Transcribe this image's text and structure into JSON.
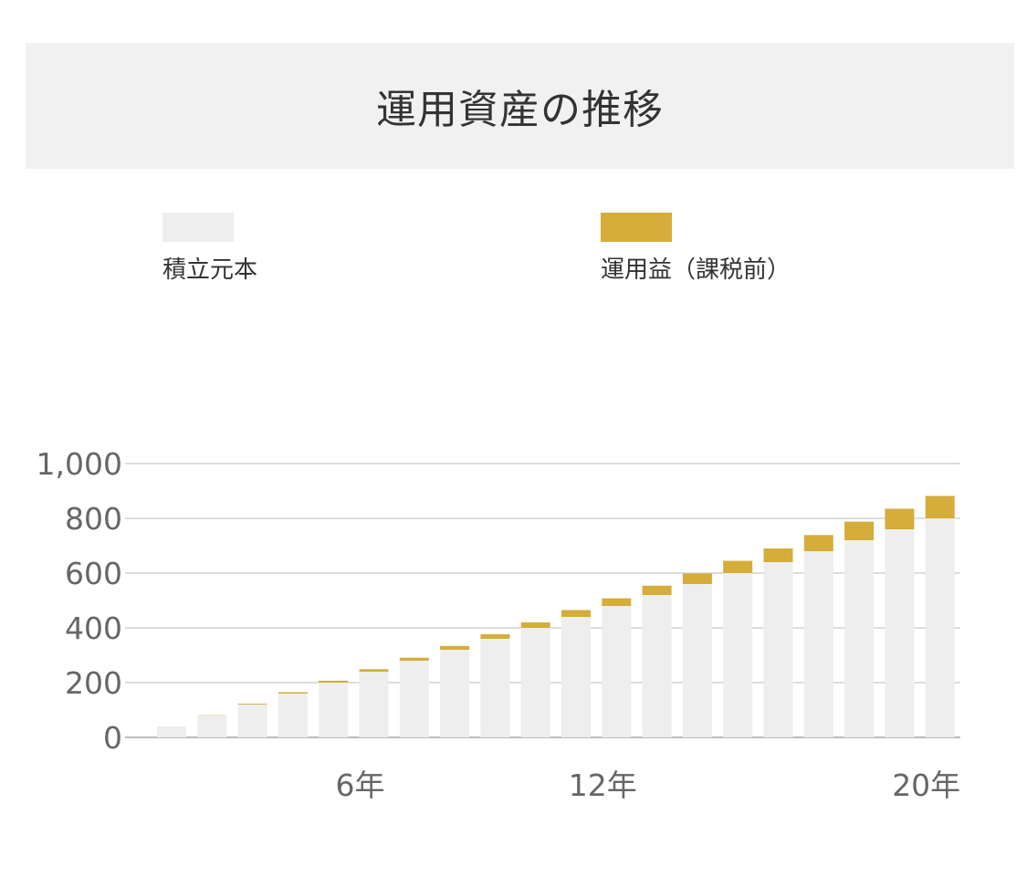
{
  "header": {
    "title": "運用資産の推移"
  },
  "legend": [
    {
      "label": "積立元本",
      "color": "#eeeeee"
    },
    {
      "label": "運用益（課税前）",
      "color": "#d4ad3a"
    }
  ],
  "chart_data": {
    "type": "bar",
    "stacked": true,
    "categories": [
      "1",
      "2",
      "3",
      "4",
      "5",
      "6",
      "7",
      "8",
      "9",
      "10",
      "11",
      "12",
      "13",
      "14",
      "15",
      "16",
      "17",
      "18",
      "19",
      "20"
    ],
    "x_tick_labels": [
      {
        "category": "6",
        "label": "6年"
      },
      {
        "category": "12",
        "label": "12年"
      },
      {
        "category": "20",
        "label": "20年"
      }
    ],
    "y_ticks": [
      {
        "value": 0,
        "label": "0"
      },
      {
        "value": 200,
        "label": "200"
      },
      {
        "value": 400,
        "label": "400"
      },
      {
        "value": 600,
        "label": "600"
      },
      {
        "value": 800,
        "label": "800"
      },
      {
        "value": 1000,
        "label": "1,000"
      }
    ],
    "ylim": [
      0,
      1000
    ],
    "grid": true,
    "series": [
      {
        "name": "積立元本",
        "color": "#eeeeee",
        "values": [
          40,
          80,
          120,
          160,
          200,
          240,
          280,
          320,
          360,
          400,
          440,
          480,
          520,
          560,
          600,
          640,
          680,
          720,
          760,
          800
        ]
      },
      {
        "name": "運用益（課税前）",
        "color": "#d4ad3a",
        "values": [
          0,
          1,
          3,
          5,
          7,
          9,
          11,
          14,
          17,
          20,
          25,
          28,
          34,
          39,
          45,
          50,
          59,
          68,
          75,
          82
        ]
      }
    ]
  }
}
